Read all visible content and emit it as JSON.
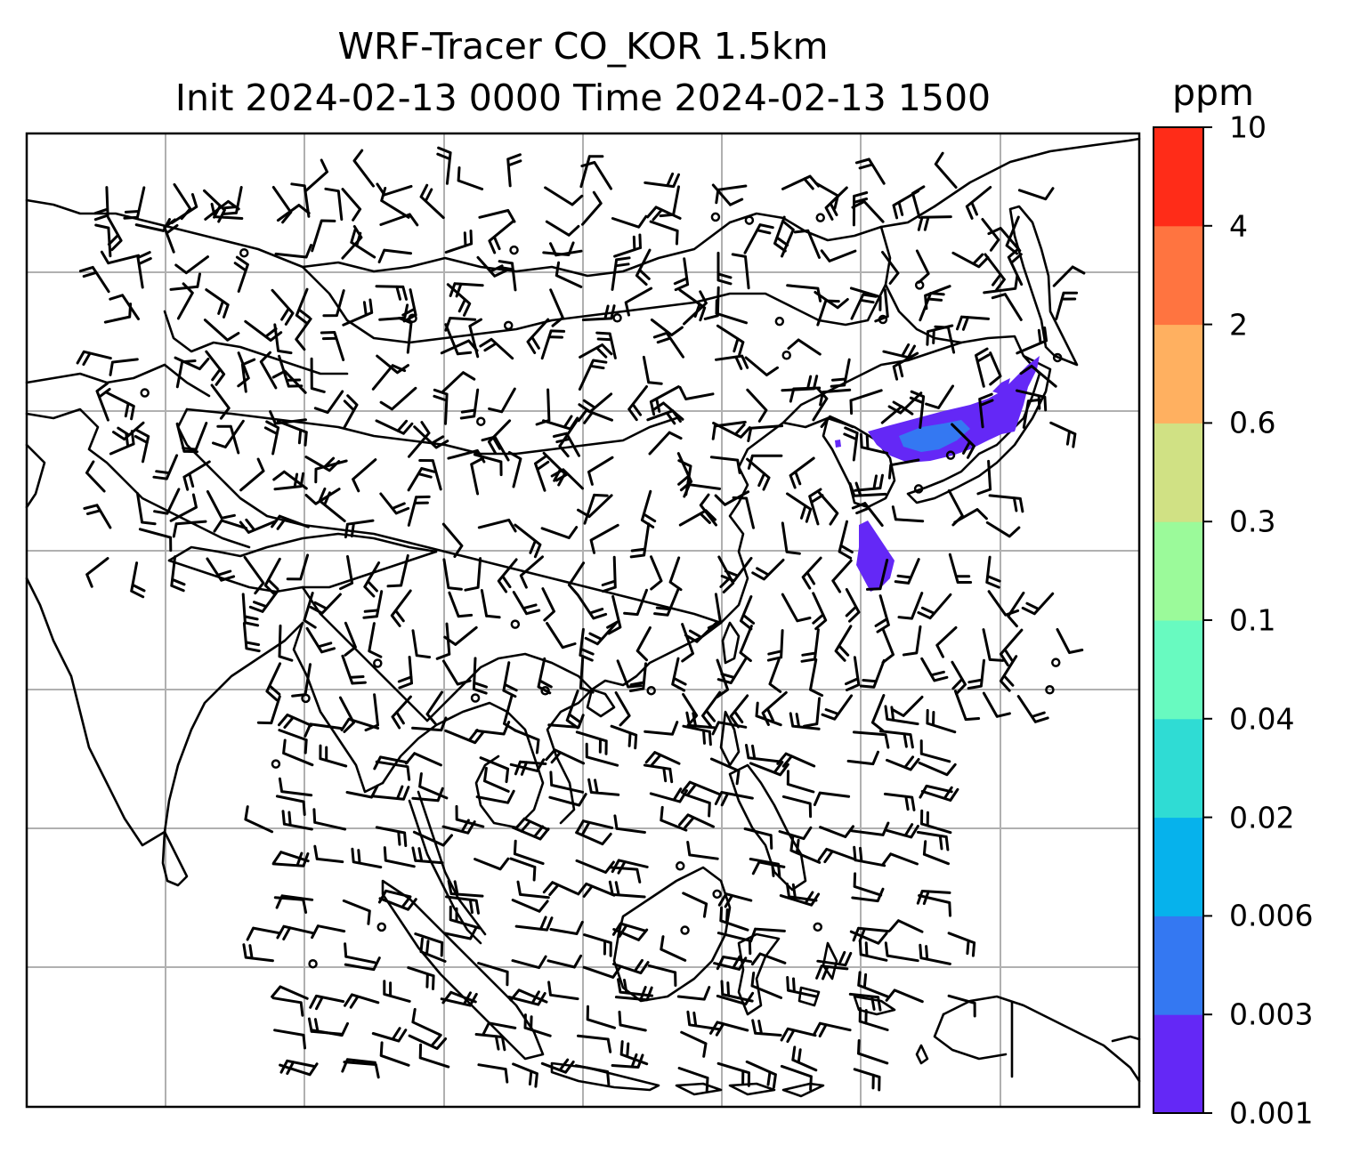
{
  "title": {
    "line1": "WRF-Tracer CO_KOR 1.5km",
    "line2": "Init 2024-02-13 0000 Time 2024-02-13 1500"
  },
  "colorbar": {
    "units": "ppm",
    "ticks": [
      "0.001",
      "0.003",
      "0.006",
      "0.02",
      "0.04",
      "0.1",
      "0.3",
      "0.6",
      "2",
      "4",
      "10"
    ],
    "colors": [
      "#6428f6",
      "#3478f2",
      "#06b2ec",
      "#2fdcd4",
      "#68fac0",
      "#9bfa9a",
      "#d0e184",
      "#ffb060",
      "#ff7440",
      "#ff2c18"
    ]
  },
  "map": {
    "gridlines": true,
    "land_color": "#ffffff",
    "coast_color": "#000000",
    "plume_color": "#6428f6",
    "plume_core_color": "#3478f2"
  }
}
